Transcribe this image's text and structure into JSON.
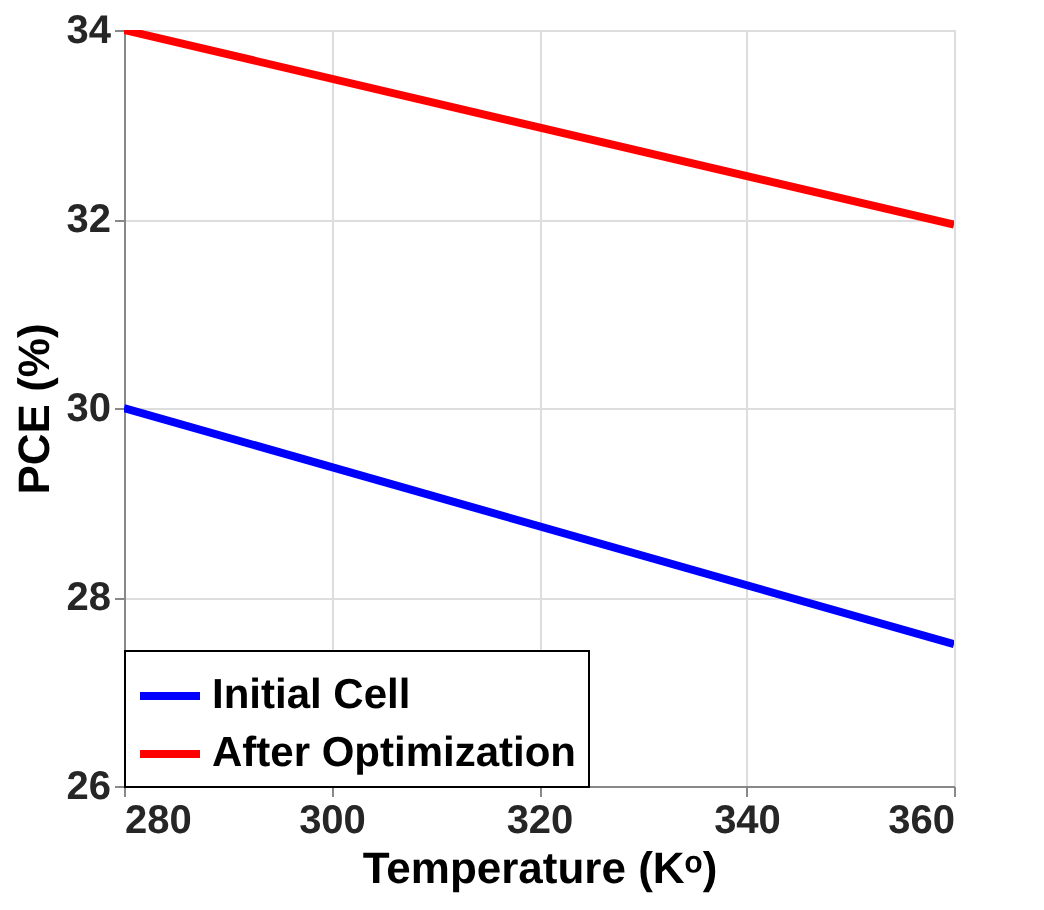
{
  "chart_data": {
    "type": "line",
    "xlabel": "Temperature (Kᵒ)",
    "ylabel": "PCE (%)",
    "x": [
      280,
      360
    ],
    "series": [
      {
        "name": "Initial Cell",
        "color": "#0000ff",
        "values": [
          30,
          27.5
        ]
      },
      {
        "name": "After Optimization",
        "color": "#ff0000",
        "values": [
          34,
          31.94
        ]
      }
    ],
    "xlim": [
      280,
      360
    ],
    "xticks": [
      280,
      300,
      320,
      340,
      360
    ],
    "ylim": [
      26,
      34
    ],
    "yticks": [
      26,
      28,
      30,
      32,
      34
    ],
    "grid": true,
    "legend": "bottom left",
    "line_style": "solid",
    "marker": "none"
  }
}
